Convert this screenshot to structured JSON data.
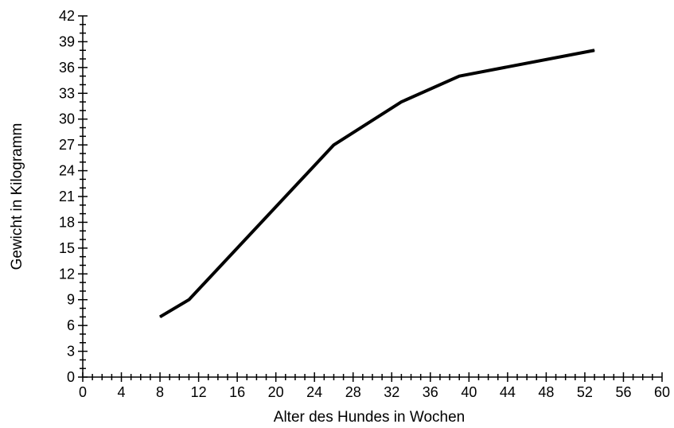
{
  "chart_data": {
    "type": "line",
    "xlabel": "Alter des Hundes in Wochen",
    "ylabel": "Gewicht in Kilogramm",
    "xlim": [
      0,
      60
    ],
    "ylim": [
      0,
      42
    ],
    "x_major_ticks": [
      0,
      4,
      8,
      12,
      16,
      20,
      24,
      28,
      32,
      36,
      40,
      44,
      48,
      52,
      56,
      60
    ],
    "y_major_ticks": [
      0,
      3,
      6,
      9,
      12,
      15,
      18,
      21,
      24,
      27,
      30,
      33,
      36,
      39,
      42
    ],
    "x_minor_step": 1,
    "y_minor_step": 1,
    "grid": false,
    "line_color": "#000000",
    "series": [
      {
        "x": [
          8,
          11,
          26,
          33,
          39,
          53
        ],
        "y": [
          7,
          9,
          27,
          32,
          35,
          38
        ]
      }
    ]
  }
}
